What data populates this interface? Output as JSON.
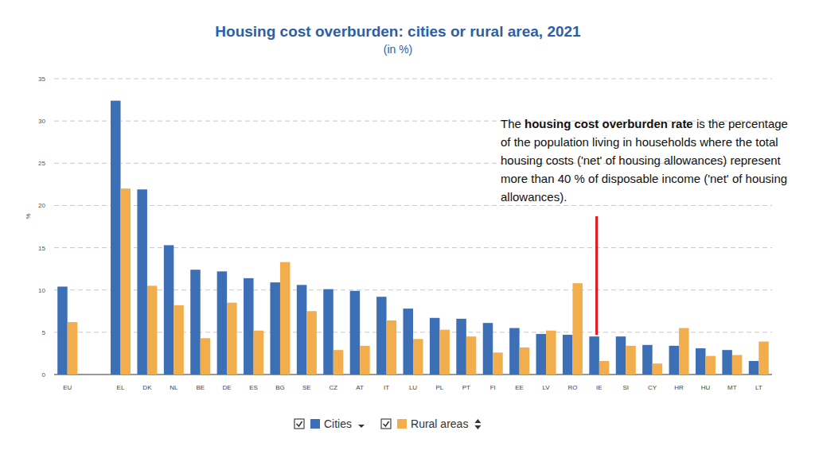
{
  "chart_data": {
    "type": "bar",
    "title": "Housing cost overburden: cities or rural area, 2021",
    "subtitle": "(in %)",
    "y_label": "%",
    "annotation": [
      "The ",
      "housing cost overburden rate",
      " is the percentage of the population living in households where the total housing costs ('net' of housing allowances) represent more than 40 % of disposable income ('net' of housing allowances)."
    ],
    "categories": [
      "EU",
      null,
      "EL",
      "DK",
      "NL",
      "BE",
      "DE",
      "ES",
      "BG",
      "SE",
      "CZ",
      "AT",
      "IT",
      "LU",
      "PL",
      "PT",
      "FI",
      "EE",
      "LV",
      "RO",
      "IE",
      "SI",
      "CY",
      "HR",
      "HU",
      "MT",
      "LT"
    ],
    "series": [
      {
        "name": "Cities",
        "color": "#3d6fb6",
        "values": [
          10.4,
          null,
          32.4,
          21.9,
          15.3,
          12.4,
          12.2,
          11.4,
          10.9,
          10.6,
          10.1,
          9.9,
          9.2,
          7.8,
          6.7,
          6.6,
          6.1,
          5.5,
          4.8,
          4.7,
          4.5,
          4.5,
          3.5,
          3.4,
          3.1,
          2.9,
          1.6
        ]
      },
      {
        "name": "Rural areas",
        "color": "#f2ad4c",
        "values": [
          6.2,
          null,
          22.0,
          10.5,
          8.2,
          4.3,
          8.5,
          5.2,
          13.3,
          7.5,
          2.9,
          3.4,
          6.4,
          4.2,
          5.3,
          4.5,
          2.6,
          3.2,
          5.2,
          10.8,
          1.6,
          3.4,
          1.3,
          5.5,
          2.2,
          2.3,
          3.9
        ]
      }
    ],
    "ylim": [
      0,
      35
    ],
    "yticks": [
      0,
      5,
      10,
      15,
      20,
      25,
      30,
      35
    ],
    "grid": true,
    "legend": "bottom"
  }
}
